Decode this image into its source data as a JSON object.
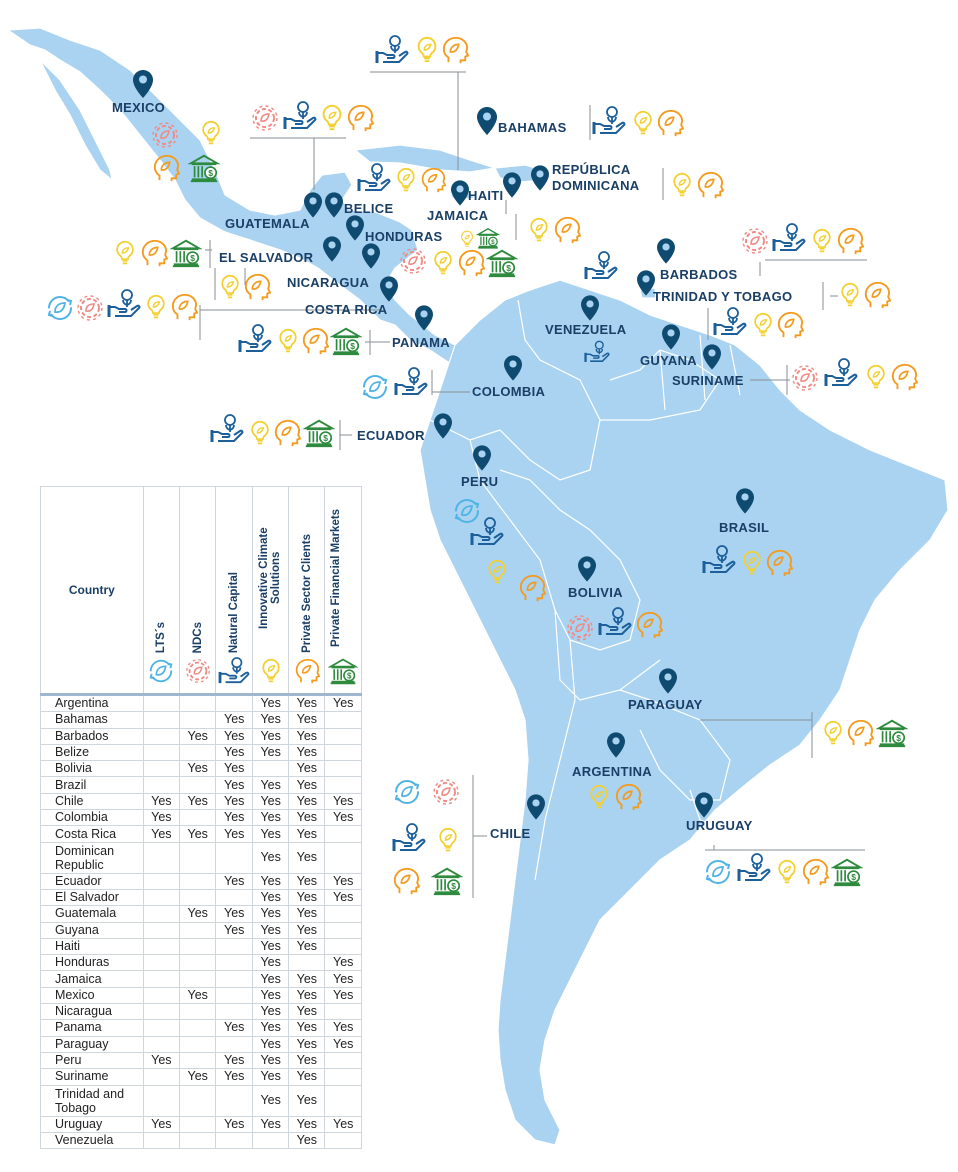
{
  "colors": {
    "land": "#a9d3f1",
    "land_border": "#ffffff",
    "pin": "#0f4a70",
    "label": "#1a3f66",
    "lts": "#4fb3e6",
    "ndc": "#f08a84",
    "natural": "#1c5f9a",
    "innovative": "#f2d02f",
    "private_clients": "#f39b1e",
    "financial": "#2e8b3e"
  },
  "pillars": [
    {
      "key": "lts",
      "label": "LTS´s",
      "icon": "recycle-leaf-icon"
    },
    {
      "key": "ndc",
      "label": "NDCs",
      "icon": "gear-leaf-icon"
    },
    {
      "key": "natural",
      "label": "Natural Capital",
      "icon": "hand-plant-icon"
    },
    {
      "key": "innovative",
      "label": "Innovative Climate Solutions",
      "icon": "lightbulb-icon"
    },
    {
      "key": "private_clients",
      "label": "Private Sector Clients",
      "icon": "head-leaf-icon"
    },
    {
      "key": "financial",
      "label": "Private Financial Markets",
      "icon": "bank-icon"
    }
  ],
  "table": {
    "header": "Country",
    "rows": [
      {
        "country": "Argentina",
        "cells": [
          "",
          "",
          "",
          "Yes",
          "Yes",
          "Yes"
        ]
      },
      {
        "country": "Bahamas",
        "cells": [
          "",
          "",
          "Yes",
          "Yes",
          "Yes",
          ""
        ]
      },
      {
        "country": "Barbados",
        "cells": [
          "",
          "Yes",
          "Yes",
          "Yes",
          "Yes",
          ""
        ]
      },
      {
        "country": "Belize",
        "cells": [
          "",
          "",
          "Yes",
          "Yes",
          "Yes",
          ""
        ]
      },
      {
        "country": "Bolivia",
        "cells": [
          "",
          "Yes",
          "Yes",
          "",
          "Yes",
          ""
        ]
      },
      {
        "country": "Brazil",
        "cells": [
          "",
          "",
          "Yes",
          "Yes",
          "Yes",
          ""
        ]
      },
      {
        "country": "Chile",
        "cells": [
          "Yes",
          "Yes",
          "Yes",
          "Yes",
          "Yes",
          "Yes"
        ]
      },
      {
        "country": "Colombia",
        "cells": [
          "Yes",
          "",
          "Yes",
          "Yes",
          "Yes",
          "Yes"
        ]
      },
      {
        "country": "Costa Rica",
        "cells": [
          "Yes",
          "Yes",
          "Yes",
          "Yes",
          "Yes",
          ""
        ]
      },
      {
        "country": "Dominican Republic",
        "cells": [
          "",
          "",
          "",
          "Yes",
          "Yes",
          ""
        ]
      },
      {
        "country": "Ecuador",
        "cells": [
          "",
          "",
          "Yes",
          "Yes",
          "Yes",
          "Yes"
        ]
      },
      {
        "country": "El Salvador",
        "cells": [
          "",
          "",
          "",
          "Yes",
          "Yes",
          "Yes"
        ]
      },
      {
        "country": "Guatemala",
        "cells": [
          "",
          "Yes",
          "Yes",
          "Yes",
          "Yes",
          ""
        ]
      },
      {
        "country": "Guyana",
        "cells": [
          "",
          "",
          "Yes",
          "Yes",
          "Yes",
          ""
        ]
      },
      {
        "country": "Haiti",
        "cells": [
          "",
          "",
          "",
          "Yes",
          "Yes",
          ""
        ]
      },
      {
        "country": "Honduras",
        "cells": [
          "",
          "",
          "",
          "Yes",
          "",
          "Yes"
        ]
      },
      {
        "country": "Jamaica",
        "cells": [
          "",
          "",
          "",
          "Yes",
          "Yes",
          "Yes"
        ]
      },
      {
        "country": "Mexico",
        "cells": [
          "",
          "Yes",
          "",
          "Yes",
          "Yes",
          "Yes"
        ]
      },
      {
        "country": "Nicaragua",
        "cells": [
          "",
          "",
          "",
          "Yes",
          "Yes",
          ""
        ]
      },
      {
        "country": "Panama",
        "cells": [
          "",
          "",
          "Yes",
          "Yes",
          "Yes",
          "Yes"
        ]
      },
      {
        "country": "Paraguay",
        "cells": [
          "",
          "",
          "",
          "Yes",
          "Yes",
          "Yes"
        ]
      },
      {
        "country": "Peru",
        "cells": [
          "Yes",
          "",
          "Yes",
          "Yes",
          "Yes",
          ""
        ]
      },
      {
        "country": "Suriname",
        "cells": [
          "",
          "Yes",
          "Yes",
          "Yes",
          "Yes",
          ""
        ]
      },
      {
        "country": "Trinidad and Tobago",
        "cells": [
          "",
          "",
          "",
          "Yes",
          "Yes",
          ""
        ]
      },
      {
        "country": "Uruguay",
        "cells": [
          "Yes",
          "",
          "Yes",
          "Yes",
          "Yes",
          "Yes"
        ]
      },
      {
        "country": "Venezuela",
        "cells": [
          "",
          "",
          "",
          "",
          "Yes",
          ""
        ]
      }
    ]
  },
  "map_labels": {
    "mexico": "MEXICO",
    "bahamas": "BAHAMAS",
    "republica": "REPÚBLICA",
    "dominicana": "DOMINICANA",
    "haiti": "HAITI",
    "jamaica": "JAMAICA",
    "guatemala": "GUATEMALA",
    "belice": "BELICE",
    "honduras": "HONDURAS",
    "el_salvador": "EL SALVADOR",
    "nicaragua": "NICARAGUA",
    "costa_rica": "COSTA RICA",
    "panama": "PANAMA",
    "barbados": "BARBADOS",
    "trinidad": "TRINIDAD Y TOBAGO",
    "venezuela": "VENEZUELA",
    "guyana": "GUYANA",
    "suriname": "SURINAME",
    "colombia": "COLOMBIA",
    "ecuador": "ECUADOR",
    "peru": "PERU",
    "brasil": "BRASIL",
    "bolivia": "BOLIVIA",
    "paraguay": "PARAGUAY",
    "argentina": "ARGENTINA",
    "uruguay": "URUGUAY",
    "chile": "CHILE"
  }
}
